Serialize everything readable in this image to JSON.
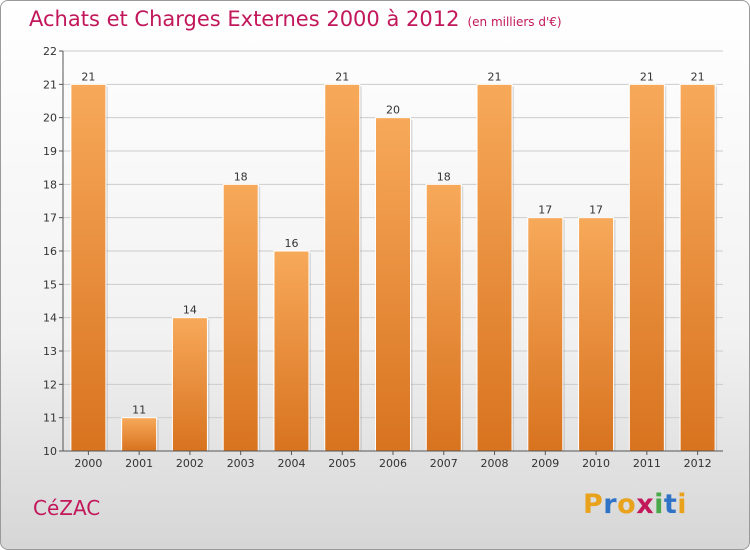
{
  "header": {
    "title": "Achats et Charges Externes 2000 à 2012",
    "unit": "(en milliers d'€)"
  },
  "footer": {
    "commune": "CéZAC",
    "logo_letters": [
      "P",
      "r",
      "o",
      "x",
      "i",
      "t",
      "i"
    ],
    "logo_colors": [
      "#e8a21c",
      "#2f73c7",
      "#e8a21c",
      "#c2185b",
      "#4aa84a",
      "#2f73c7",
      "#e8a21c"
    ]
  },
  "colors": {
    "bar_top": "#f7a95a",
    "bar_bottom": "#d8731f",
    "grid": "#cccccc",
    "text": "#333333",
    "title": "#c2185b"
  },
  "chart_data": {
    "type": "bar",
    "categories": [
      "2000",
      "2001",
      "2002",
      "2003",
      "2004",
      "2005",
      "2006",
      "2007",
      "2008",
      "2009",
      "2010",
      "2011",
      "2012"
    ],
    "values": [
      21,
      11,
      14,
      18,
      16,
      21,
      20,
      18,
      21,
      17,
      17,
      21,
      21
    ],
    "title": "Achats et Charges Externes 2000 à 2012",
    "ylim": [
      10,
      22
    ],
    "yticks": [
      10,
      11,
      12,
      13,
      14,
      15,
      16,
      17,
      18,
      19,
      20,
      21,
      22
    ],
    "grid": true
  }
}
